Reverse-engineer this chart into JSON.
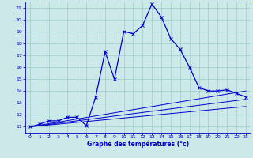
{
  "bg_color": "#cce8e8",
  "grid_color": "#99cccc",
  "line_color": "#0000cc",
  "xlabel": "Graphe des températures (°c)",
  "xlim": [
    -0.5,
    23.5
  ],
  "ylim": [
    10.5,
    21.5
  ],
  "yticks": [
    11,
    12,
    13,
    14,
    15,
    16,
    17,
    18,
    19,
    20,
    21
  ],
  "xticks": [
    0,
    1,
    2,
    3,
    4,
    5,
    6,
    7,
    8,
    9,
    10,
    11,
    12,
    13,
    14,
    15,
    16,
    17,
    18,
    19,
    20,
    21,
    22,
    23
  ],
  "temp_line": {
    "x": [
      0,
      1,
      2,
      3,
      4,
      5,
      6,
      7,
      8,
      9,
      10,
      11,
      12,
      13,
      14,
      15,
      16,
      17,
      18,
      19,
      20,
      21,
      22,
      23
    ],
    "y": [
      11.0,
      11.2,
      11.5,
      11.5,
      11.8,
      11.8,
      11.1,
      13.5,
      17.3,
      15.0,
      19.0,
      18.8,
      19.5,
      21.3,
      20.2,
      18.4,
      17.5,
      16.0,
      14.3,
      14.0,
      14.0,
      14.1,
      13.8,
      13.5
    ]
  },
  "line2": {
    "x": [
      0,
      23
    ],
    "y": [
      11.0,
      14.0
    ]
  },
  "line3": {
    "x": [
      0,
      23
    ],
    "y": [
      11.0,
      13.3
    ]
  },
  "line4": {
    "x": [
      0,
      23
    ],
    "y": [
      11.0,
      12.7
    ]
  }
}
